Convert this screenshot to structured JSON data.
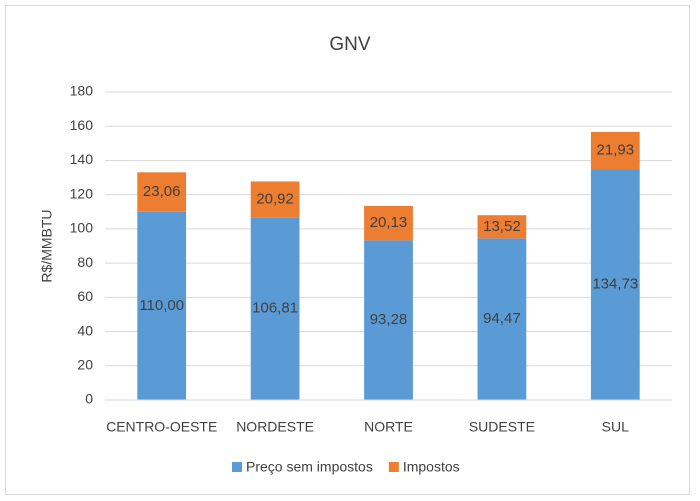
{
  "chart_data": {
    "type": "stacked-bar",
    "title": "GNV",
    "y_label": "R$/MMBTU",
    "categories": [
      "CENTRO-OESTE",
      "NORDESTE",
      "NORTE",
      "SUDESTE",
      "SUL"
    ],
    "series": [
      {
        "name": "Preço sem impostos",
        "color": "#5b9bd5",
        "values": [
          110.0,
          106.81,
          93.28,
          94.47,
          134.73
        ],
        "value_labels": [
          "110,00",
          "106,81",
          "93,28",
          "94,47",
          "134,73"
        ]
      },
      {
        "name": "Impostos",
        "color": "#ed7d31",
        "values": [
          23.06,
          20.92,
          20.13,
          13.52,
          21.93
        ],
        "value_labels": [
          "23,06",
          "20,92",
          "20,13",
          "13,52",
          "21,93"
        ]
      }
    ],
    "ylim": [
      0,
      180
    ],
    "yticks": [
      0,
      20,
      40,
      60,
      80,
      100,
      120,
      140,
      160,
      180
    ],
    "grid": true,
    "legend": "bottom"
  }
}
